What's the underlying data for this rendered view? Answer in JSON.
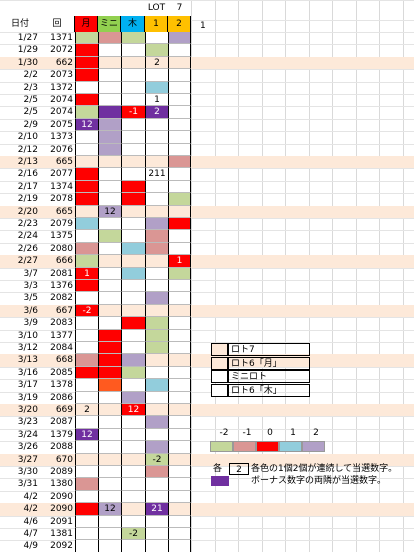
{
  "header": {
    "top": [
      "LOT",
      "7"
    ],
    "labels": [
      "日付",
      "回",
      "月",
      "ミニ",
      "木",
      "1",
      "2"
    ],
    "extra": "1"
  },
  "rows": [
    [
      "1/27",
      1371,
      null,
      null,
      null,
      null,
      null
    ],
    [
      "1/29",
      2072,
      null,
      null,
      null,
      null,
      null
    ],
    [
      "1/30",
      662,
      null,
      null,
      null,
      2,
      null
    ],
    [
      "2/2",
      2073,
      null,
      null,
      null,
      null,
      null
    ],
    [
      "2/3",
      1372,
      null,
      null,
      null,
      null,
      null
    ],
    [
      "2/5",
      2074,
      null,
      null,
      null,
      1,
      null
    ],
    [
      "2/5",
      2074,
      null,
      null,
      -1,
      2,
      null
    ],
    [
      "2/9",
      2075,
      12,
      null,
      null,
      null,
      null
    ],
    [
      "2/10",
      1373,
      null,
      null,
      null,
      null,
      null
    ],
    [
      "2/12",
      2076,
      null,
      null,
      null,
      null,
      null
    ],
    [
      "2/13",
      665,
      null,
      null,
      null,
      null,
      null
    ],
    [
      "2/16",
      2077,
      null,
      null,
      null,
      211,
      null
    ],
    [
      "2/17",
      1374,
      null,
      null,
      null,
      null,
      null
    ],
    [
      "2/19",
      2078,
      null,
      null,
      null,
      null,
      null
    ],
    [
      "2/20",
      665,
      null,
      12,
      null,
      null,
      null
    ],
    [
      "2/23",
      2079,
      null,
      null,
      null,
      null,
      null
    ],
    [
      "2/24",
      1375,
      null,
      null,
      null,
      null,
      null
    ],
    [
      "2/26",
      2080,
      null,
      null,
      null,
      null,
      null
    ],
    [
      "2/27",
      666,
      null,
      null,
      null,
      null,
      1
    ],
    [
      "3/7",
      2081,
      1,
      null,
      null,
      null,
      null
    ],
    [
      "3/3",
      1376,
      null,
      null,
      null,
      null,
      null
    ],
    [
      "3/5",
      2082,
      null,
      null,
      null,
      null,
      null
    ],
    [
      "3/6",
      667,
      -2,
      null,
      null,
      null,
      null
    ],
    [
      "3/9",
      2083,
      null,
      null,
      null,
      null,
      null
    ],
    [
      "3/10",
      1377,
      null,
      null,
      null,
      null,
      null
    ],
    [
      "3/12",
      2084,
      null,
      null,
      null,
      null,
      null
    ],
    [
      "3/13",
      668,
      null,
      null,
      null,
      null,
      null
    ],
    [
      "3/16",
      2085,
      null,
      null,
      null,
      null,
      null
    ],
    [
      "3/17",
      1378,
      null,
      null,
      null,
      null,
      null
    ],
    [
      "3/19",
      2086,
      null,
      null,
      null,
      null,
      null
    ],
    [
      "3/20",
      669,
      2,
      null,
      12,
      null,
      null
    ],
    [
      "3/23",
      2087,
      null,
      null,
      null,
      null,
      null
    ],
    [
      "3/24",
      1379,
      12,
      null,
      null,
      null,
      null
    ],
    [
      "3/26",
      2088,
      null,
      null,
      null,
      null,
      null
    ],
    [
      "3/27",
      670,
      null,
      null,
      null,
      -2,
      null
    ],
    [
      "3/30",
      2089,
      null,
      null,
      null,
      null,
      null
    ],
    [
      "3/31",
      1380,
      null,
      null,
      null,
      null,
      null
    ],
    [
      "4/2",
      2090,
      null,
      null,
      null,
      null,
      null
    ],
    [
      "4/2",
      2090,
      null,
      12,
      null,
      21,
      null
    ],
    [
      "4/6",
      2091,
      null,
      null,
      null,
      null,
      null
    ],
    [
      "4/7",
      1381,
      null,
      null,
      -2,
      null,
      null
    ],
    [
      "4/9",
      2092,
      null,
      null,
      null,
      null,
      null
    ]
  ],
  "legend": [
    "ロト7",
    "ロト6「月」",
    "ミニロト",
    "ロト6「木」"
  ],
  "scale": [
    -2,
    -1,
    0,
    1,
    2
  ],
  "note": {
    "prefix": "各",
    "count": 2,
    "line1": "各色の1個2個が連続して当選数字。",
    "line2": "ボーナス数字の両隣が当選数字。"
  }
}
